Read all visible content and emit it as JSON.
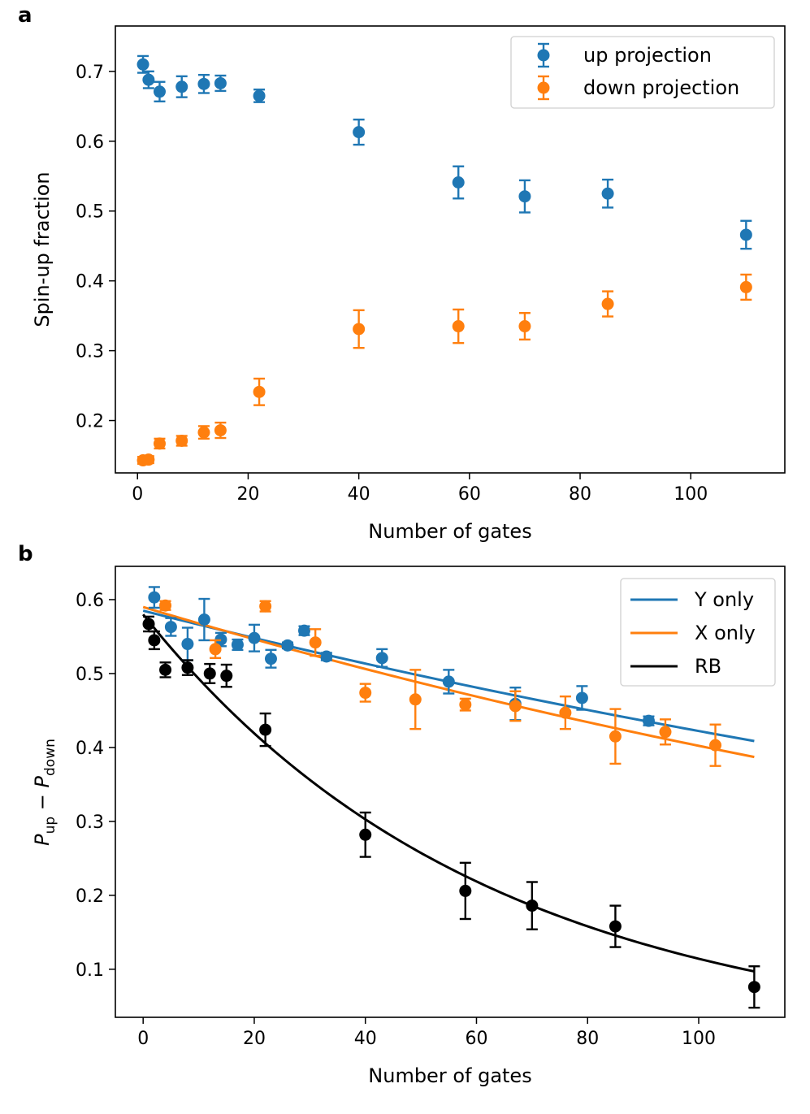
{
  "chart_data": [
    {
      "panel": "a",
      "type": "scatter",
      "xlabel": "Number of gates",
      "ylabel": "Spin-up fraction",
      "xlim": [
        -4,
        117
      ],
      "ylim": [
        0.125,
        0.765
      ],
      "xticks": [
        0,
        20,
        40,
        60,
        80,
        100
      ],
      "yticks": [
        0.2,
        0.3,
        0.4,
        0.5,
        0.6,
        0.7
      ],
      "ytick_labels": [
        "0.2",
        "0.3",
        "0.4",
        "0.5",
        "0.6",
        "0.7"
      ],
      "legend_position": "top-right",
      "series": [
        {
          "name": "up projection",
          "color": "#1f77b4",
          "x": [
            1,
            2,
            4,
            8,
            12,
            15,
            22,
            40,
            58,
            70,
            85,
            110
          ],
          "y": [
            0.71,
            0.688,
            0.671,
            0.678,
            0.682,
            0.683,
            0.665,
            0.613,
            0.541,
            0.521,
            0.525,
            0.466
          ],
          "err": [
            0.012,
            0.012,
            0.014,
            0.015,
            0.013,
            0.011,
            0.009,
            0.018,
            0.023,
            0.023,
            0.02,
            0.02
          ]
        },
        {
          "name": "down projection",
          "color": "#ff7f0e",
          "x": [
            1,
            2,
            4,
            8,
            12,
            15,
            22,
            40,
            58,
            70,
            85,
            110
          ],
          "y": [
            0.143,
            0.144,
            0.167,
            0.171,
            0.183,
            0.186,
            0.241,
            0.331,
            0.335,
            0.335,
            0.367,
            0.391
          ],
          "err": [
            0.005,
            0.005,
            0.007,
            0.007,
            0.009,
            0.011,
            0.019,
            0.027,
            0.024,
            0.019,
            0.018,
            0.018
          ]
        }
      ]
    },
    {
      "panel": "b",
      "type": "scatter",
      "xlabel": "Number of gates",
      "ylabel_main": "P",
      "ylabel_sub_up": "up",
      "ylabel_minus": " − ",
      "ylabel_sub_down": "down",
      "xlim": [
        -5,
        115.5
      ],
      "ylim": [
        0.035,
        0.645
      ],
      "xticks": [
        0,
        20,
        40,
        60,
        80,
        100
      ],
      "yticks": [
        0.1,
        0.2,
        0.3,
        0.4,
        0.5,
        0.6
      ],
      "ytick_labels": [
        "0.1",
        "0.2",
        "0.3",
        "0.4",
        "0.5",
        "0.6"
      ],
      "legend_position": "top-right",
      "series": [
        {
          "name": "Y only",
          "color": "#1f77b4",
          "x": [
            2,
            5,
            8,
            11,
            14,
            17,
            20,
            23,
            26,
            29,
            33,
            43,
            55,
            67,
            79,
            91
          ],
          "y": [
            0.603,
            0.563,
            0.54,
            0.573,
            0.546,
            0.539,
            0.548,
            0.52,
            0.538,
            0.558,
            0.523,
            0.521,
            0.489,
            0.459,
            0.467,
            0.436
          ],
          "err": [
            0.014,
            0.012,
            0.022,
            0.028,
            0.009,
            0.007,
            0.018,
            0.012,
            0.004,
            0.006,
            0.005,
            0.012,
            0.016,
            0.022,
            0.016,
            0.006
          ],
          "fit": {
            "a": 0.585,
            "b": 0.00326
          }
        },
        {
          "name": "X only",
          "color": "#ff7f0e",
          "x": [
            4,
            13,
            22,
            31,
            40,
            49,
            58,
            67,
            76,
            85,
            94,
            103
          ],
          "y": [
            0.592,
            0.533,
            0.591,
            0.542,
            0.474,
            0.465,
            0.458,
            0.456,
            0.447,
            0.415,
            0.421,
            0.403
          ],
          "err": [
            0.006,
            0.012,
            0.007,
            0.018,
            0.012,
            0.04,
            0.008,
            0.02,
            0.022,
            0.037,
            0.017,
            0.028
          ],
          "fit": {
            "a": 0.59,
            "b": 0.00383
          }
        },
        {
          "name": "RB",
          "color": "#000000",
          "x": [
            1,
            2,
            4,
            8,
            12,
            15,
            22,
            40,
            58,
            70,
            85,
            110
          ],
          "y": [
            0.567,
            0.545,
            0.505,
            0.508,
            0.5,
            0.497,
            0.424,
            0.282,
            0.206,
            0.186,
            0.158,
            0.076
          ],
          "err": [
            0.01,
            0.012,
            0.01,
            0.01,
            0.013,
            0.015,
            0.022,
            0.03,
            0.038,
            0.032,
            0.028,
            0.028
          ],
          "fit": {
            "a": 0.58,
            "b": 0.01625
          }
        }
      ]
    }
  ]
}
